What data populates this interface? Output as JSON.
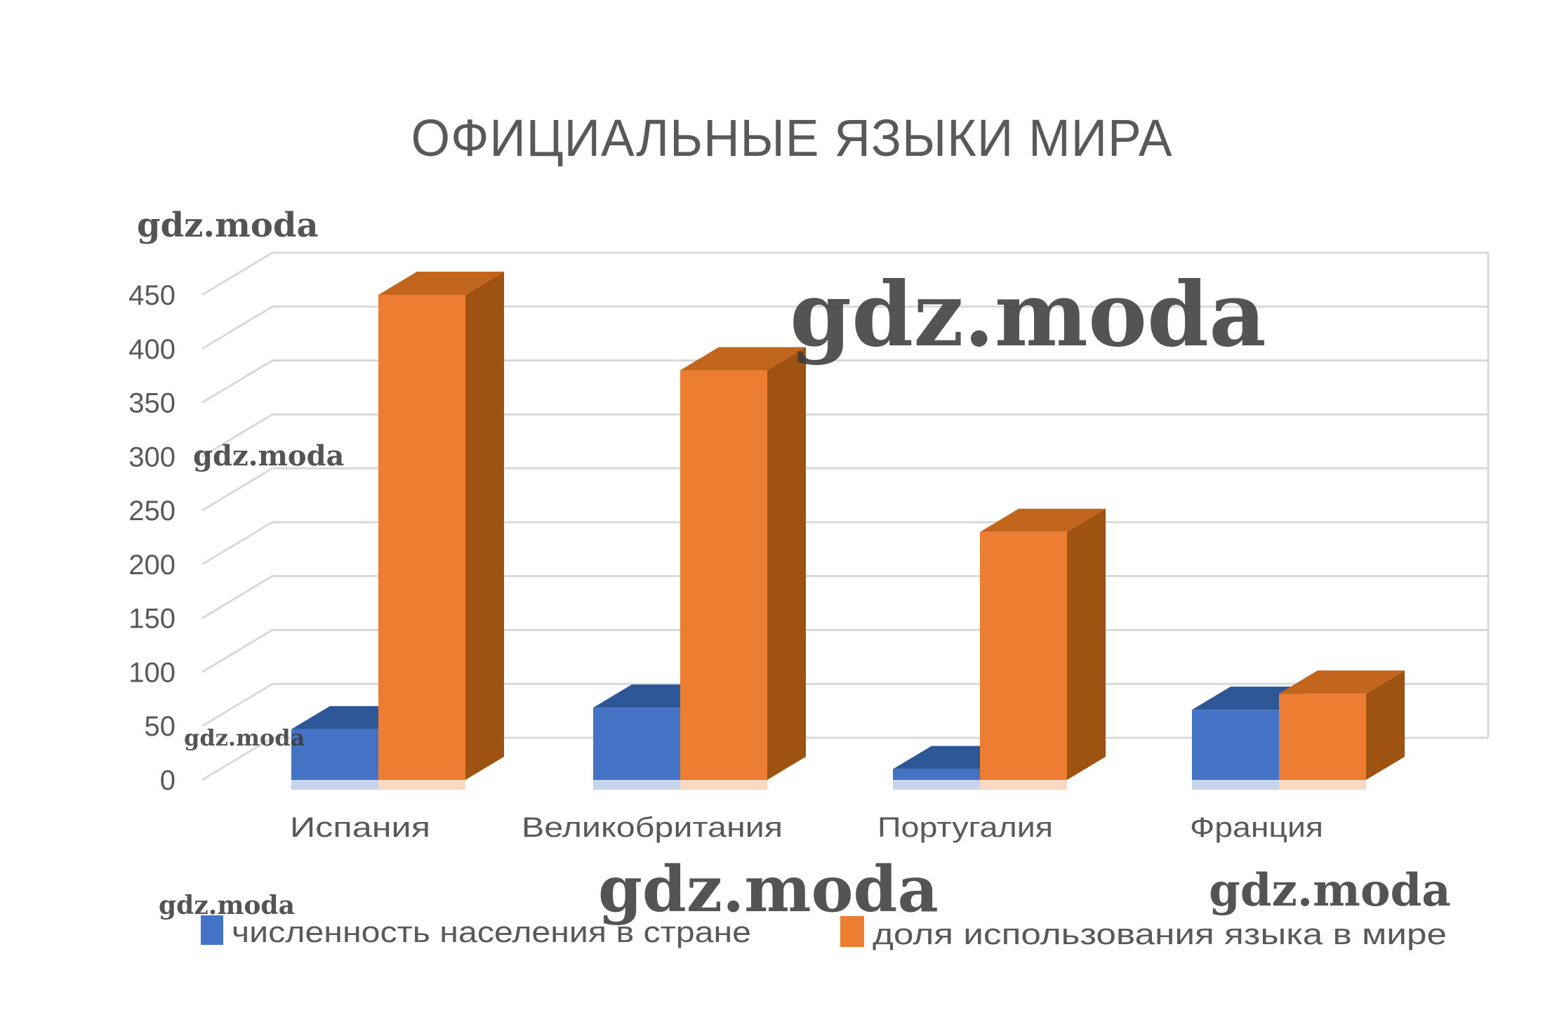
{
  "watermark": {
    "text": "gdz.moda"
  },
  "chart_data": {
    "type": "bar",
    "style": "3d-clustered-column",
    "title": "ОФИЦИАЛЬНЫЕ ЯЗЫКИ МИРА",
    "categories": [
      "Испания",
      "Великобритания",
      "Португалия",
      "Франция"
    ],
    "series": [
      {
        "name": "численность населения в стране",
        "color": "#4472C4",
        "values": [
          47,
          67,
          10,
          65
        ]
      },
      {
        "name": "доля использования языка в мире",
        "color": "#ED7D31",
        "values": [
          450,
          380,
          230,
          80
        ]
      }
    ],
    "xlabel": "",
    "ylabel": "",
    "ylim": [
      0,
      450
    ],
    "y_ticks": [
      0,
      50,
      100,
      150,
      200,
      250,
      300,
      350,
      400,
      450
    ],
    "grid": true,
    "legend_position": "bottom"
  },
  "colors": {
    "blue_front": "#4472C4",
    "blue_top": "#2E5797",
    "blue_side": "#24477E",
    "orange_front": "#ED7D31",
    "orange_top": "#C2661E",
    "orange_side": "#9E5312",
    "gridline": "#D9D9D9",
    "text": "#595959"
  }
}
